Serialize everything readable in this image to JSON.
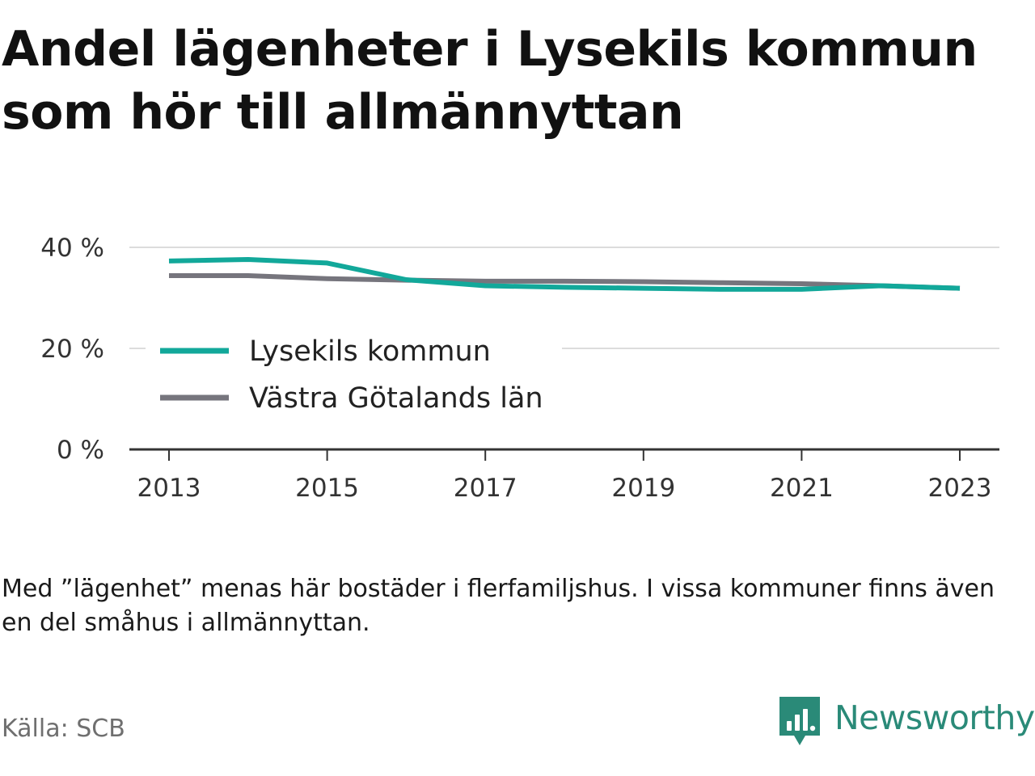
{
  "title": "Andel lägenheter i Lysekils kommun som hör till allmännyttan",
  "note": "Med ”lägenhet” menas här bostäder i flerfamiljshus. I vissa kommuner finns även en del småhus i allmännyttan.",
  "source": "Källa: SCB",
  "brand": {
    "name": "Newsworthy",
    "icon": "newsworthy-logo-icon",
    "color": "#2a8a78"
  },
  "chart_data": {
    "type": "line",
    "title": "",
    "xlabel": "",
    "ylabel": "",
    "x": [
      2013,
      2014,
      2015,
      2016,
      2017,
      2018,
      2019,
      2020,
      2021,
      2022,
      2023
    ],
    "x_tick_labels": [
      "2013",
      "2015",
      "2017",
      "2019",
      "2021",
      "2023"
    ],
    "y_tick_labels": [
      "0 %",
      "20 %",
      "40 %"
    ],
    "ylim": [
      0,
      40
    ],
    "grid": true,
    "legend_position": "inside-left",
    "series": [
      {
        "name": "Lysekils kommun",
        "color": "#12a89a",
        "values": [
          37.3,
          37.6,
          36.9,
          33.6,
          32.4,
          32.1,
          31.9,
          31.7,
          31.7,
          32.4,
          31.9
        ]
      },
      {
        "name": "Västra Götalands län",
        "color": "#76757d",
        "values": [
          34.4,
          34.4,
          33.8,
          33.5,
          33.3,
          33.3,
          33.2,
          33.0,
          32.8,
          32.4,
          31.9
        ]
      }
    ]
  }
}
